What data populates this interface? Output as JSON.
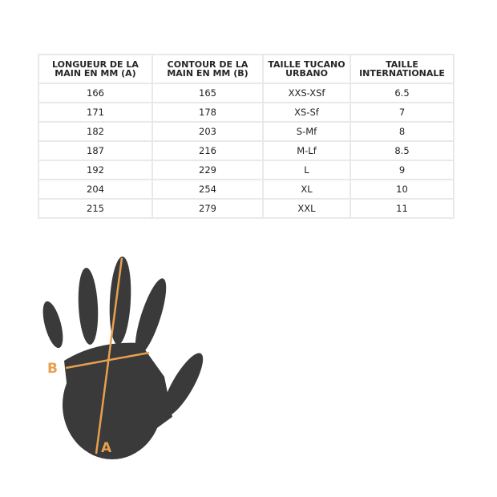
{
  "table": {
    "headers": [
      "LONGUEUR DE LA MAIN EN MM (A)",
      "CONTOUR DE LA MAIN EN MM (B)",
      "TAILLE TUCANO URBANO",
      "TAILLE INTERNATIONALE"
    ],
    "rows": [
      [
        "166",
        "165",
        "XXS-XSf",
        "6.5"
      ],
      [
        "171",
        "178",
        "XS-Sf",
        "7"
      ],
      [
        "182",
        "203",
        "S-Mf",
        "8"
      ],
      [
        "187",
        "216",
        "M-Lf",
        "8.5"
      ],
      [
        "192",
        "229",
        "L",
        "9"
      ],
      [
        "204",
        "254",
        "XL",
        "10"
      ],
      [
        "215",
        "279",
        "XXL",
        "11"
      ]
    ]
  },
  "diagram": {
    "label_a": "A",
    "label_b": "B",
    "accent_color": "#e8a050",
    "hand_color": "#3a3a3a"
  }
}
